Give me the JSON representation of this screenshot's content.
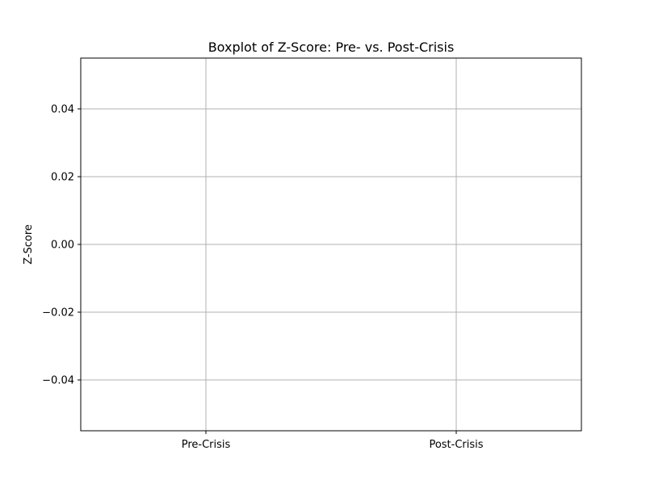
{
  "chart_data": {
    "type": "boxplot",
    "title": "Boxplot of Z-Score: Pre- vs. Post-Crisis",
    "xlabel": "",
    "ylabel": "Z-Score",
    "categories": [
      "Pre-Crisis",
      "Post-Crisis"
    ],
    "series": [],
    "ylim": [
      -0.055,
      0.055
    ],
    "y_ticks": [
      -0.04,
      -0.02,
      0.0,
      0.02,
      0.04
    ],
    "y_tick_labels": [
      "−0.04",
      "−0.02",
      "0.00",
      "0.02",
      "0.04"
    ],
    "grid": true,
    "legend": "none",
    "colors": {
      "grid": "#b0b0b0",
      "axes": "#000000",
      "background": "#ffffff"
    }
  }
}
